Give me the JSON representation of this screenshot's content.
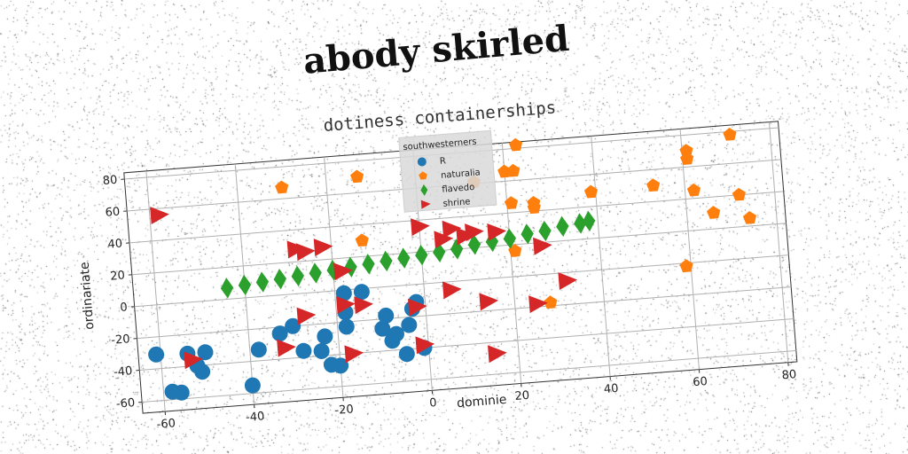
{
  "page": {
    "title": "abody skirled"
  },
  "chart_data": {
    "type": "scatter",
    "title": "dotiness containerships",
    "xlabel": "dominie",
    "ylabel": "ordinariate",
    "xlim": [
      -65,
      82
    ],
    "ylim": [
      -67,
      84
    ],
    "xticks": [
      -60,
      -40,
      -20,
      0,
      20,
      40,
      60,
      80
    ],
    "yticks": [
      -60,
      -40,
      -20,
      0,
      20,
      40,
      60,
      80
    ],
    "grid": true,
    "legend": {
      "title": "southwesterners",
      "position": "top-center"
    },
    "series": [
      {
        "name": "R",
        "color": "#1f77b4",
        "marker": "circle",
        "points": [
          [
            -61,
            -31
          ],
          [
            -58,
            -55
          ],
          [
            -56,
            -56
          ],
          [
            -54,
            -32
          ],
          [
            -52,
            -40
          ],
          [
            -51,
            -44
          ],
          [
            -50,
            -32
          ],
          [
            -40,
            -55
          ],
          [
            -38,
            -33
          ],
          [
            -33,
            -24
          ],
          [
            -30,
            -20
          ],
          [
            -28,
            -36
          ],
          [
            -24,
            -37
          ],
          [
            -23,
            -28
          ],
          [
            -22,
            -46
          ],
          [
            -20,
            -47
          ],
          [
            -18,
            -23
          ],
          [
            -18,
            -14
          ],
          [
            -18,
            -2
          ],
          [
            -14,
            -2
          ],
          [
            -10,
            -26
          ],
          [
            -8,
            -34
          ],
          [
            -7,
            -30
          ],
          [
            -5,
            -43
          ],
          [
            -4,
            -25
          ],
          [
            -3,
            -15
          ],
          [
            -2,
            -11
          ],
          [
            -1,
            -40
          ],
          [
            -9,
            -18
          ]
        ]
      },
      {
        "name": "naturalia",
        "color": "#ff7f0e",
        "marker": "pentagon",
        "points": [
          [
            -13,
            70
          ],
          [
            -30,
            67
          ],
          [
            23,
            82
          ],
          [
            20,
            66
          ],
          [
            22,
            66
          ],
          [
            13,
            61
          ],
          [
            21,
            46
          ],
          [
            26,
            45
          ],
          [
            26,
            42
          ],
          [
            39,
            49
          ],
          [
            53,
            50
          ],
          [
            62,
            45
          ],
          [
            61,
            65
          ],
          [
            61,
            70
          ],
          [
            71,
            78
          ],
          [
            72,
            40
          ],
          [
            74,
            25
          ],
          [
            66,
            30
          ],
          [
            59,
            -2
          ],
          [
            -13,
            30
          ],
          [
            21,
            16
          ],
          [
            28,
            -18
          ]
        ]
      },
      {
        "name": "flavedo",
        "color": "#2ca02c",
        "marker": "diamond",
        "points": [
          [
            -44,
            7
          ],
          [
            -40,
            8
          ],
          [
            -36,
            9
          ],
          [
            -32,
            10
          ],
          [
            -28,
            11
          ],
          [
            -24,
            12
          ],
          [
            -20,
            13
          ],
          [
            -16,
            14
          ],
          [
            -12,
            15
          ],
          [
            -8,
            16
          ],
          [
            -4,
            17
          ],
          [
            0,
            18
          ],
          [
            4,
            19
          ],
          [
            8,
            20
          ],
          [
            12,
            22
          ],
          [
            16,
            23
          ],
          [
            20,
            24
          ],
          [
            24,
            26
          ],
          [
            28,
            27
          ],
          [
            32,
            29
          ],
          [
            36,
            30
          ],
          [
            38,
            31
          ]
        ]
      },
      {
        "name": "shrine",
        "color": "#d62728",
        "marker": "triangle-right",
        "points": [
          [
            -58,
            56
          ],
          [
            -53,
            -36
          ],
          [
            -32,
            -33
          ],
          [
            -27,
            -14
          ],
          [
            -26,
            26
          ],
          [
            -28,
            28
          ],
          [
            -22,
            28
          ],
          [
            -18,
            12
          ],
          [
            -14,
            -10
          ],
          [
            -18,
            -9
          ],
          [
            -17,
            -40
          ],
          [
            -2,
            -14
          ],
          [
            -1,
            -38
          ],
          [
            6,
            -5
          ],
          [
            7,
            33
          ],
          [
            12,
            30
          ],
          [
            17,
            29
          ],
          [
            15,
            -47
          ],
          [
            25,
            -18
          ],
          [
            27,
            18
          ],
          [
            32,
            -5
          ],
          [
            14,
            -14
          ],
          [
            0,
            36
          ],
          [
            5,
            27
          ],
          [
            10,
            28
          ]
        ]
      }
    ]
  }
}
